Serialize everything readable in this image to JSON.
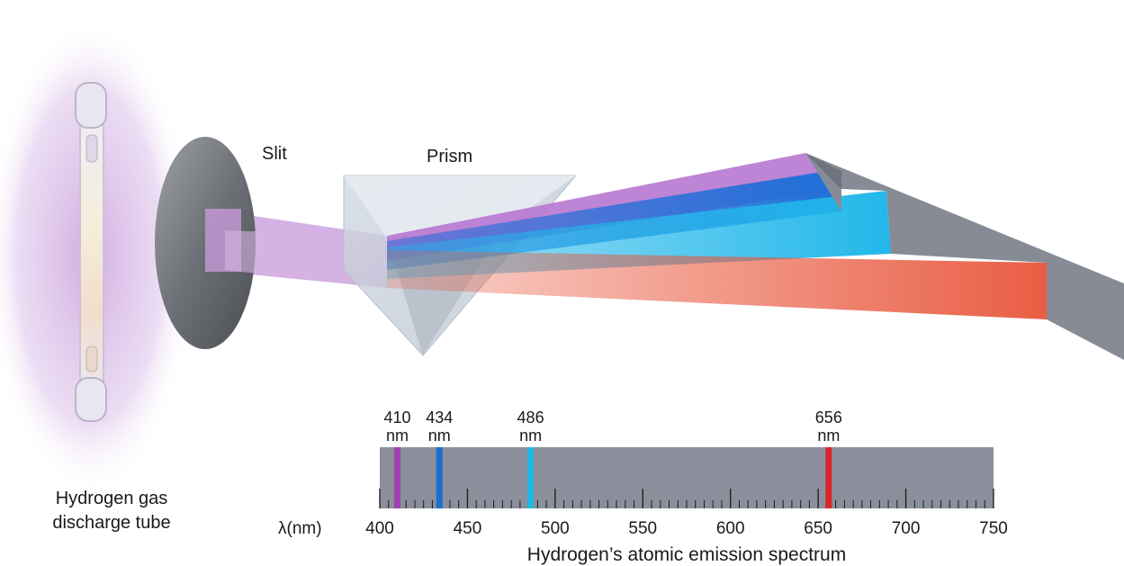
{
  "labels": {
    "slit": "Slit",
    "prism": "Prism",
    "tube_line1": "Hydrogen gas",
    "tube_line2": "discharge tube",
    "axis_prefix": "λ(nm)",
    "spectrum_title": "Hydrogen’s atomic emission spectrum"
  },
  "emission_lines": [
    {
      "wavelength": 410,
      "label_top": "410",
      "label_unit": "nm",
      "color": "#a142b0"
    },
    {
      "wavelength": 434,
      "label_top": "434",
      "label_unit": "nm",
      "color": "#1a6fd0"
    },
    {
      "wavelength": 486,
      "label_top": "486",
      "label_unit": "nm",
      "color": "#1cb9e0"
    },
    {
      "wavelength": 656,
      "label_top": "656",
      "label_unit": "nm",
      "color": "#d9262b"
    }
  ],
  "axis": {
    "min": 400,
    "max": 750,
    "major_ticks": [
      400,
      450,
      500,
      550,
      600,
      650,
      700,
      750
    ],
    "minor_step": 5
  },
  "colors": {
    "spectrum_bg": "#8a8f9b",
    "violet_beam": "#b77fd0",
    "blue_beam": "#1e6fd8",
    "cyan_beam": "#22b7ea",
    "red_beam": "#e8553a",
    "glow": "#d9b8e6"
  }
}
